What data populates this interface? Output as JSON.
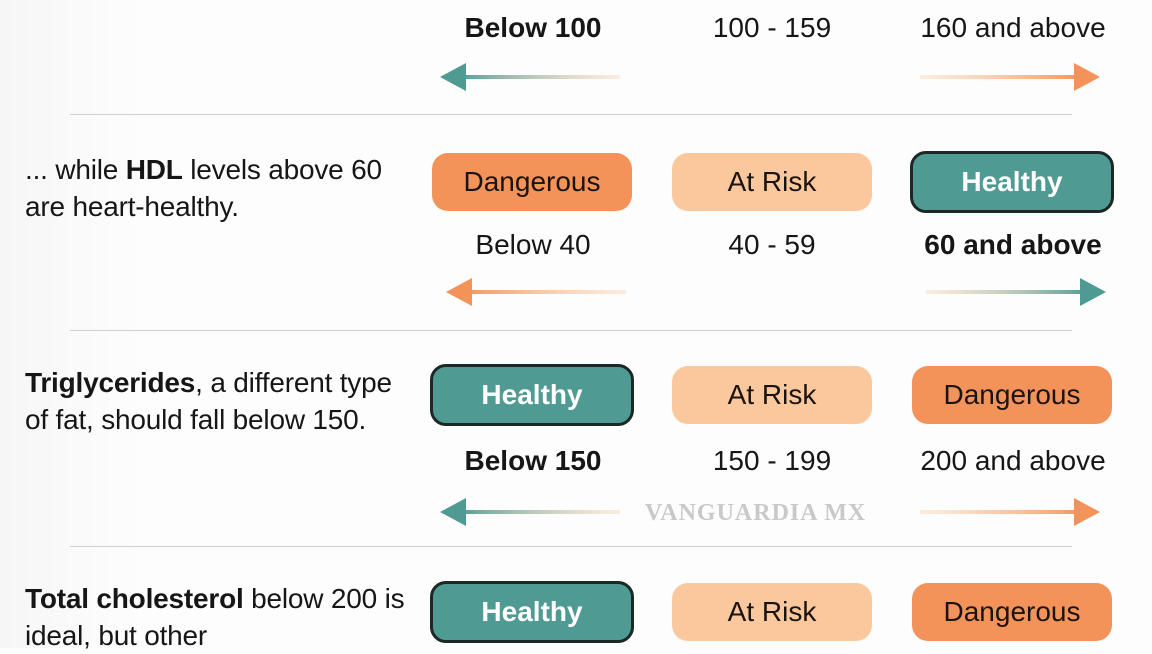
{
  "rows": [
    {
      "description": {
        "bold": "",
        "text": ""
      },
      "levels": [
        {
          "status": "",
          "range": "Below 100",
          "bold": true
        },
        {
          "status": "",
          "range": "100 - 159",
          "bold": false
        },
        {
          "status": "",
          "range": "160 and above",
          "bold": false
        }
      ],
      "arrows": {
        "left": "teal",
        "right": "orange"
      }
    },
    {
      "description": {
        "prefix": "... while ",
        "bold": "HDL",
        "text": " levels above 60 are heart-healthy."
      },
      "levels": [
        {
          "status": "Dangerous",
          "range": "Below 40",
          "bold": false
        },
        {
          "status": "At Risk",
          "range": "40 - 59",
          "bold": false
        },
        {
          "status": "Healthy",
          "range": "60 and above",
          "bold": true
        }
      ],
      "arrows": {
        "left": "orange",
        "right": "teal"
      }
    },
    {
      "description": {
        "prefix": "",
        "bold": "Triglycerides",
        "text": ", a different type of fat, should fall below 150."
      },
      "levels": [
        {
          "status": "Healthy",
          "range": "Below 150",
          "bold": true
        },
        {
          "status": "At Risk",
          "range": "150 - 199",
          "bold": false
        },
        {
          "status": "Dangerous",
          "range": "200 and above",
          "bold": false
        }
      ],
      "arrows": {
        "left": "teal",
        "right": "orange"
      }
    },
    {
      "description": {
        "prefix": "",
        "bold": "Total cholesterol",
        "text": " below 200 is ideal, but other"
      },
      "levels": [
        {
          "status": "Healthy"
        },
        {
          "status": "At Risk"
        },
        {
          "status": "Dangerous"
        }
      ]
    }
  ],
  "watermark": "VANGUARDIA MX",
  "colors": {
    "dangerous": "#f3935a",
    "at_risk": "#fbc79c",
    "healthy": "#4f9b93",
    "teal_arrow": "#4f9b93",
    "orange_arrow": "#f3935a"
  }
}
